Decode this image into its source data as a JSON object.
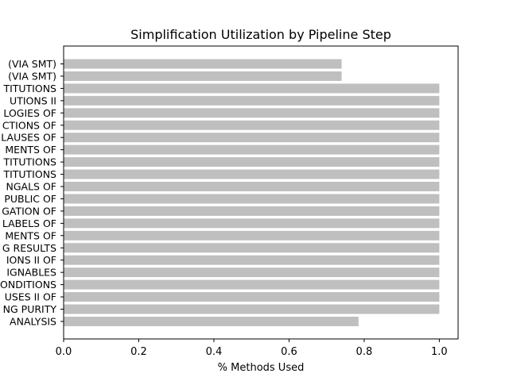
{
  "chart_data": {
    "type": "bar",
    "orientation": "horizontal",
    "title": "Simplification Utilization by Pipeline Step",
    "xlabel": "% Methods Used",
    "ylabel": "",
    "xlim": [
      0,
      1.05
    ],
    "xticks": [
      "0.0",
      "0.2",
      "0.4",
      "0.6",
      "0.8",
      "1.0"
    ],
    "grid": false,
    "bar_color": "#bfbfbf",
    "categories": [
      "(VIA SMT)",
      "(VIA SMT)",
      "TITUTIONS",
      "UTIONS II",
      "LOGIES OF",
      "CTIONS OF",
      "LAUSES OF",
      "MENTS OF",
      "TITUTIONS",
      "TITUTIONS",
      "NGALS OF",
      "PUBLIC OF",
      "GATION OF",
      "LABELS OF",
      "MENTS OF",
      "G RESULTS",
      "IONS II OF",
      "IGNABLES",
      "ONDITIONS",
      "USES II OF",
      "NG PURITY",
      "ANALYSIS"
    ],
    "values": [
      0.74,
      0.74,
      1.0,
      1.0,
      1.0,
      1.0,
      1.0,
      1.0,
      1.0,
      1.0,
      1.0,
      1.0,
      1.0,
      1.0,
      1.0,
      1.0,
      1.0,
      1.0,
      1.0,
      1.0,
      1.0,
      0.785
    ]
  }
}
